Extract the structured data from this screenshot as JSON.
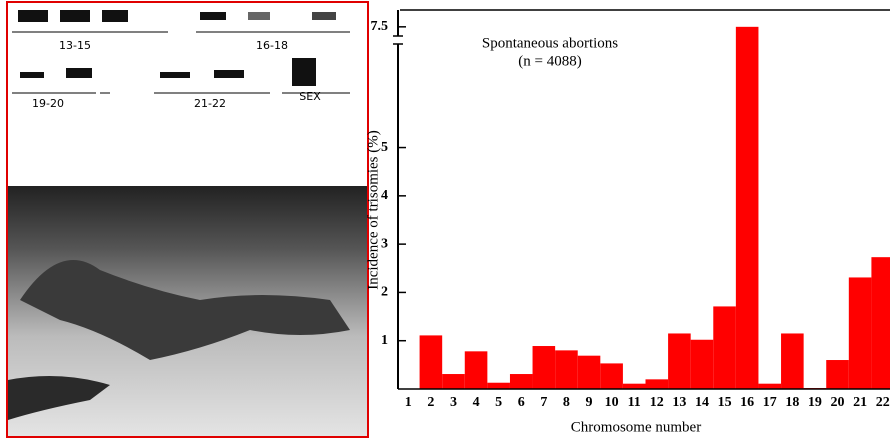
{
  "photo": {
    "labels": [
      "13-15",
      "16-18",
      "19-20",
      "21-22",
      "SEX"
    ]
  },
  "chart_data": {
    "type": "bar",
    "annotation": "Spontaneous abortions",
    "annotation_n": "(n = 4088)",
    "xlabel": "Chromosome number",
    "ylabel": "Incidence of trisomies (%)",
    "categories": [
      "1",
      "2",
      "3",
      "4",
      "5",
      "6",
      "7",
      "8",
      "9",
      "10",
      "11",
      "12",
      "13",
      "14",
      "15",
      "16",
      "17",
      "18",
      "19",
      "20",
      "21",
      "22"
    ],
    "values": [
      0,
      1.11,
      0.31,
      0.78,
      0.13,
      0.31,
      0.89,
      0.8,
      0.69,
      0.53,
      0.11,
      0.2,
      1.15,
      1.02,
      1.71,
      7.5,
      0.11,
      1.15,
      0.02,
      0.6,
      2.31,
      2.73
    ],
    "color": "#ff0000",
    "ylim": [
      0,
      7.6
    ],
    "yticks": [
      1,
      2,
      3,
      4,
      5,
      7.5
    ],
    "grid": false
  }
}
